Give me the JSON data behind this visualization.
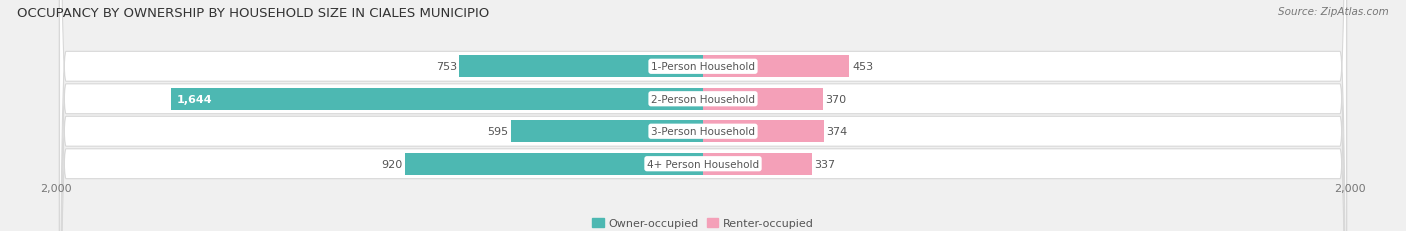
{
  "title": "OCCUPANCY BY OWNERSHIP BY HOUSEHOLD SIZE IN CIALES MUNICIPIO",
  "source": "Source: ZipAtlas.com",
  "categories": [
    "1-Person Household",
    "2-Person Household",
    "3-Person Household",
    "4+ Person Household"
  ],
  "owner_values": [
    753,
    1644,
    595,
    920
  ],
  "renter_values": [
    453,
    370,
    374,
    337
  ],
  "max_axis": 2000,
  "owner_color": "#4db8b2",
  "renter_color": "#f4a0b8",
  "row_bg_color": "#efefef",
  "row_border_color": "#d8d8d8",
  "title_fontsize": 9.5,
  "axis_label_fontsize": 8,
  "bar_label_fontsize": 8,
  "category_fontsize": 7.5,
  "legend_fontsize": 8,
  "source_fontsize": 7.5
}
